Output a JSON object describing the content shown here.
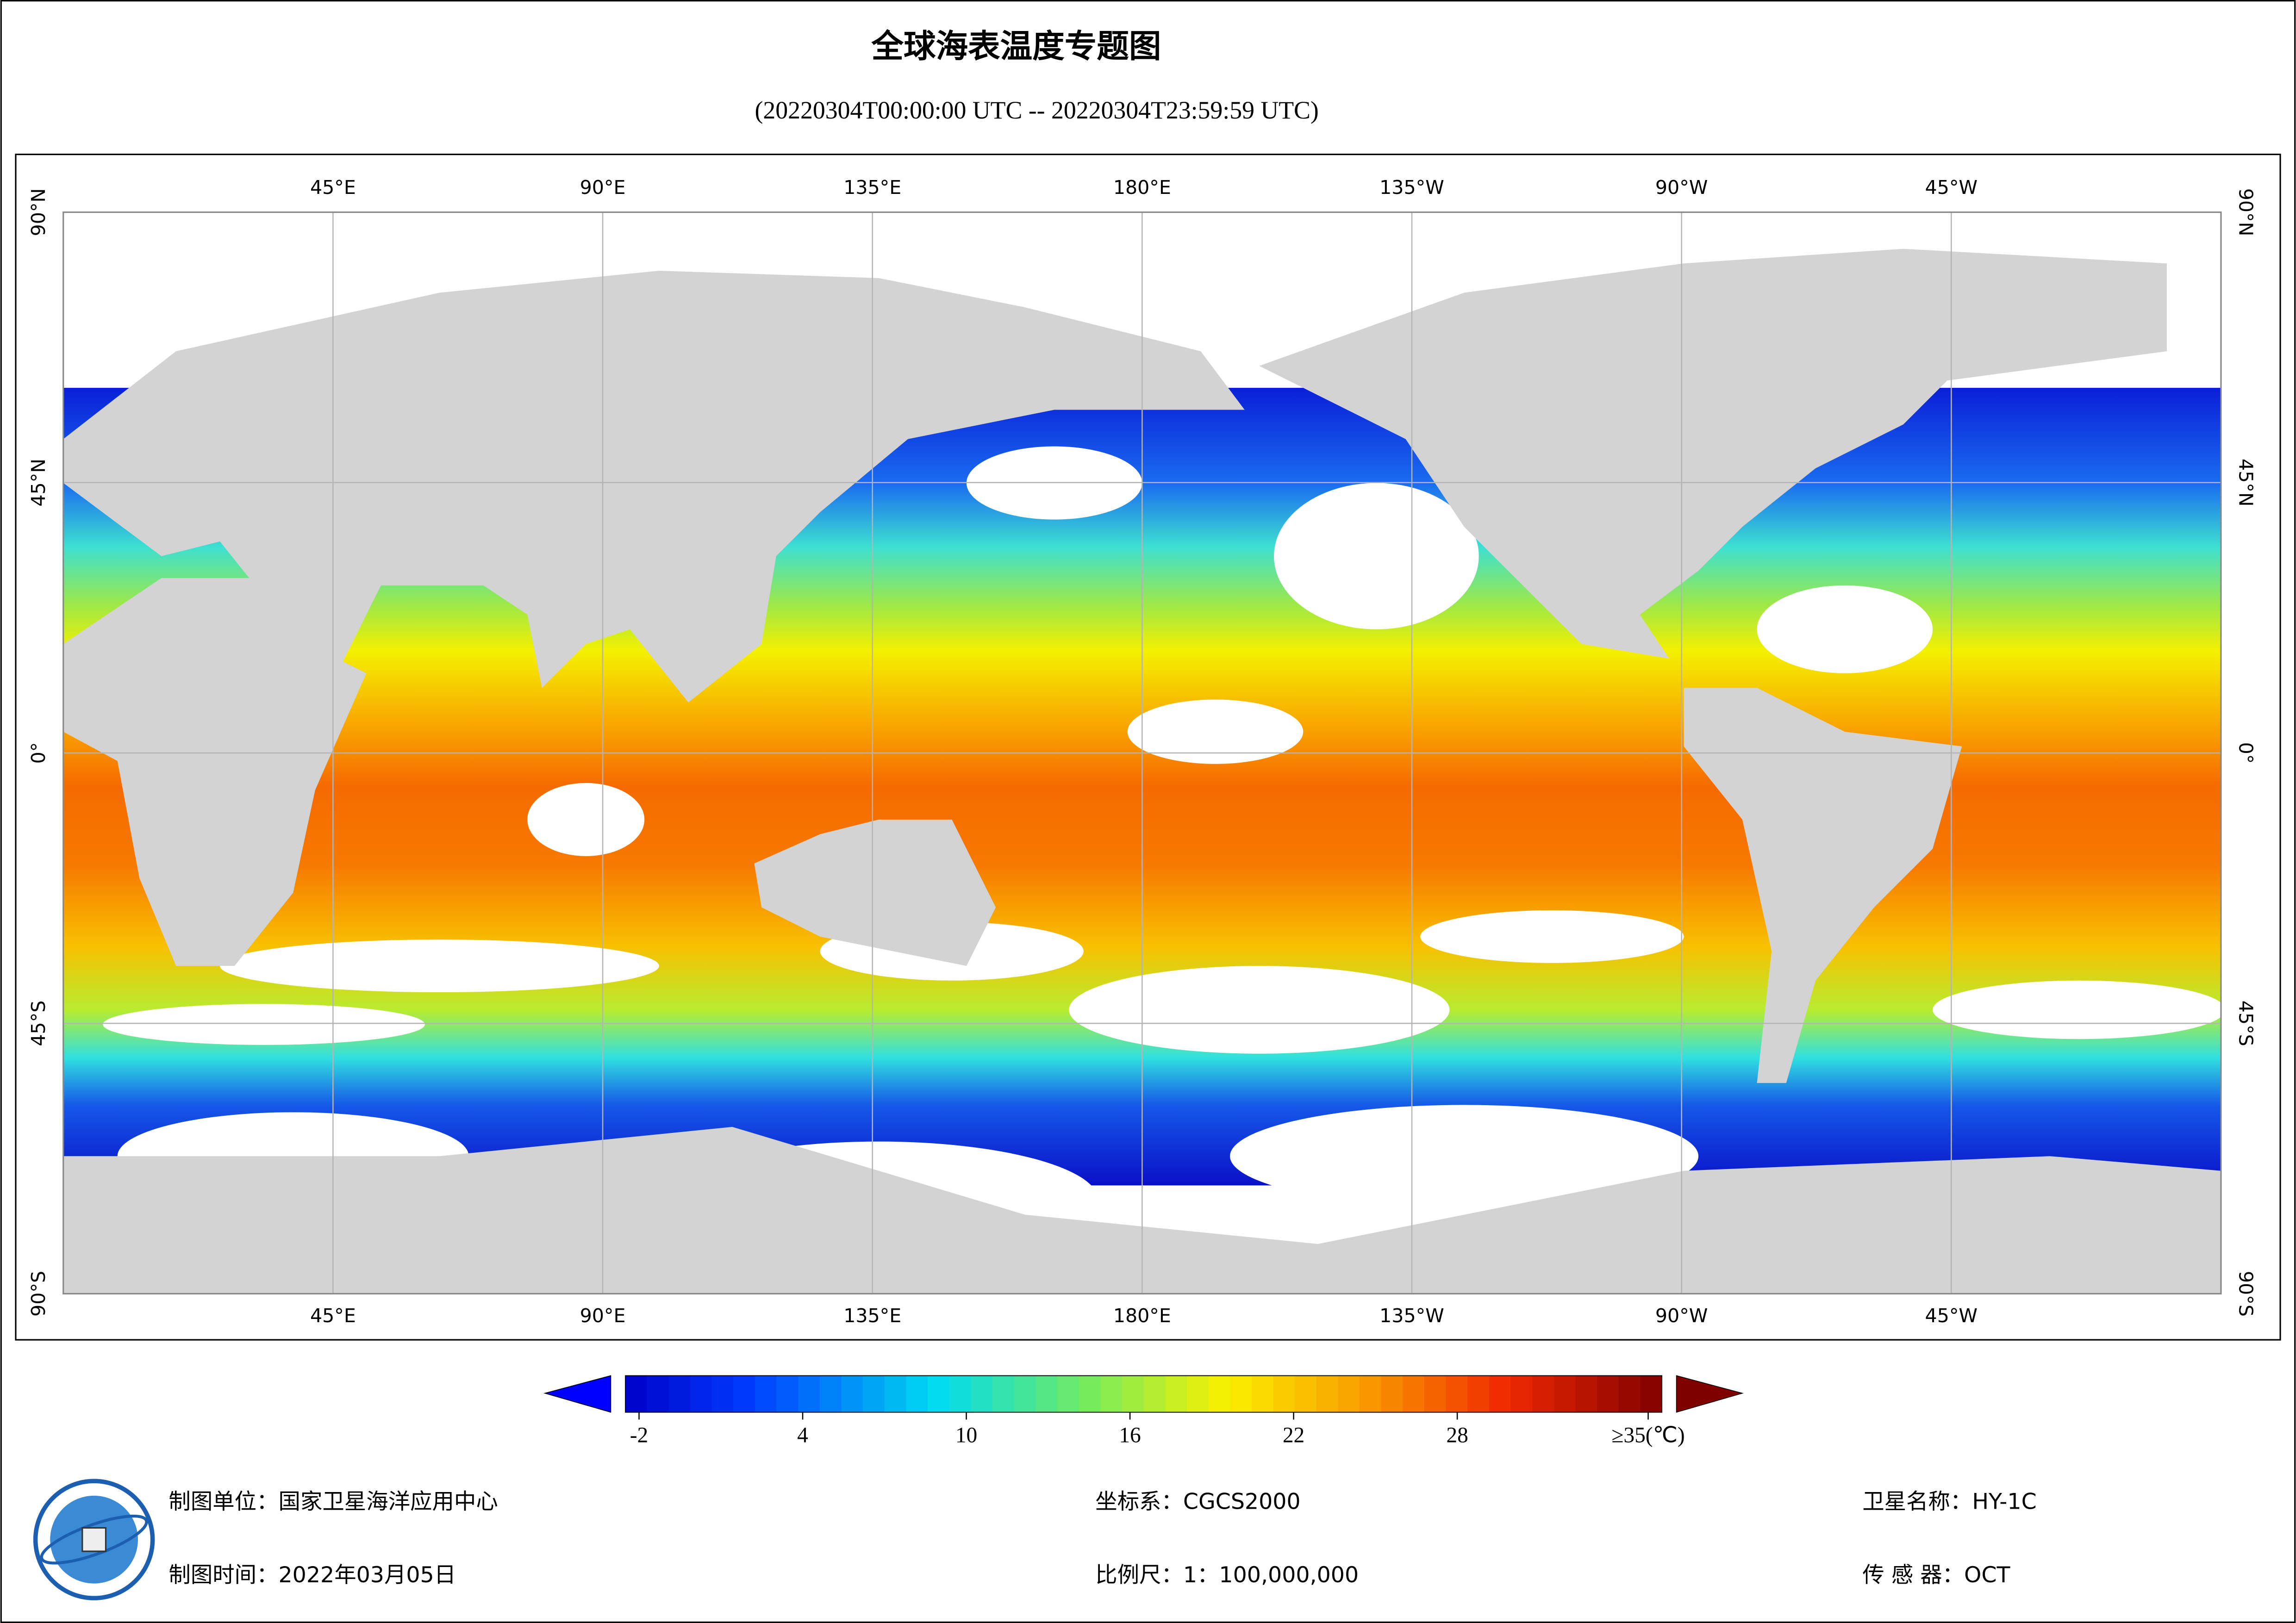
{
  "title": "全球海表温度专题图",
  "subtitle": "(20220304T00:00:00 UTC -- 20220304T23:59:59 UTC)",
  "map": {
    "lon_labels": [
      "45°E",
      "90°E",
      "135°E",
      "180°E",
      "135°W",
      "90°W",
      "45°W"
    ],
    "lat_labels": [
      "90°N",
      "45°N",
      "0°",
      "45°S",
      "90°S"
    ]
  },
  "colorbar": {
    "lim": [
      -2.5,
      35.5
    ],
    "ticks": [
      -2,
      4,
      10,
      16,
      22,
      28,
      {
        "value": 35,
        "label": "≥35(℃)"
      }
    ]
  },
  "footer": {
    "producer": "制图单位：国家卫星海洋应用中心",
    "date": "制图时间：2022年03月05日",
    "crs": "坐标系：CGCS2000",
    "scale": "比例尺：1：100,000,000",
    "satellite": "卫星名称：HY-1C",
    "sensor": "传 感 器：OCT"
  }
}
